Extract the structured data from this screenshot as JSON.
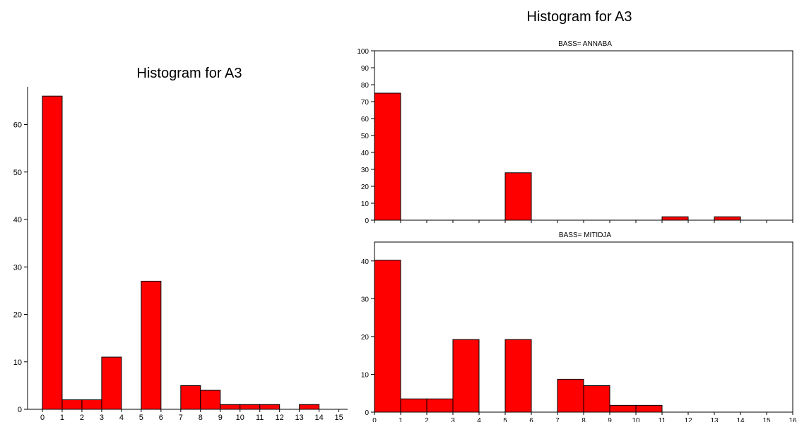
{
  "chart_data": [
    {
      "type": "bar",
      "title": "Histogram for A3",
      "bins": [
        0,
        1,
        2,
        3,
        4,
        5,
        6,
        7,
        8,
        9,
        10,
        11,
        12,
        13,
        14
      ],
      "values": [
        66,
        2,
        2,
        11,
        0,
        27,
        0,
        5,
        4,
        1,
        1,
        1,
        0,
        1,
        0
      ],
      "xticks": [
        "0",
        "1",
        "2",
        "3",
        "4",
        "5",
        "6",
        "7",
        "8",
        "9",
        "10",
        "11",
        "12",
        "13",
        "14",
        "15"
      ],
      "yticks": [
        "0",
        "10",
        "20",
        "30",
        "40",
        "50",
        "60"
      ],
      "ylim": [
        0,
        69
      ],
      "xlim": [
        0,
        15.3
      ],
      "grid": false,
      "color": "#ff0000"
    },
    {
      "type": "bar",
      "title": "Histogram for A3",
      "subtitle": "BASS= ANNABA",
      "bins": [
        0,
        1,
        2,
        3,
        4,
        5,
        6,
        7,
        8,
        9,
        10,
        11,
        12,
        13,
        14,
        15
      ],
      "values": [
        75,
        0,
        0,
        0,
        0,
        28,
        0,
        0,
        0,
        0,
        0,
        2,
        0,
        2,
        0,
        0
      ],
      "xticks": [],
      "yticks": [
        "0",
        "10",
        "20",
        "30",
        "40",
        "50",
        "60",
        "70",
        "80",
        "90",
        "100"
      ],
      "ylim": [
        0,
        100
      ],
      "xlim": [
        0,
        16
      ],
      "grid": false,
      "color": "#ff0000"
    },
    {
      "type": "bar",
      "subtitle": "BASS= MITIDJA",
      "bins": [
        0,
        1,
        2,
        3,
        4,
        5,
        6,
        7,
        8,
        9,
        10,
        11,
        12,
        13,
        14,
        15
      ],
      "values": [
        40.2,
        3.5,
        3.5,
        19.2,
        0,
        19.2,
        0,
        8.7,
        7,
        1.8,
        1.8,
        0,
        0,
        0,
        0,
        0
      ],
      "xticks": [
        "0",
        "1",
        "2",
        "3",
        "4",
        "5",
        "6",
        "7",
        "8",
        "9",
        "10",
        "11",
        "12",
        "13",
        "14",
        "15",
        "16"
      ],
      "yticks": [
        "0",
        "10",
        "20",
        "30",
        "40"
      ],
      "ylim": [
        0,
        45
      ],
      "xlim": [
        0,
        16
      ],
      "grid": false,
      "color": "#ff0000"
    }
  ]
}
